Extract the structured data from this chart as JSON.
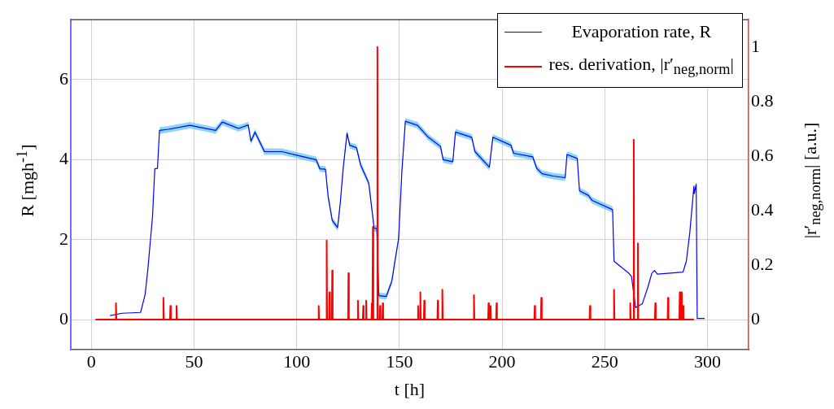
{
  "chart_data": {
    "type": "line",
    "xlabel": "t [h]",
    "ylabel": "R [mgh$^{-1}$]",
    "y2label": "|r′$_{neg,norm}$| [a.u.]",
    "xlim": [
      -10,
      320
    ],
    "xticks": [
      0,
      50,
      100,
      150,
      200,
      250,
      300
    ],
    "ylim": [
      -0.75,
      7.5
    ],
    "yticks": [
      0,
      2,
      4,
      6
    ],
    "y2lim": [
      -0.11,
      1.1
    ],
    "y2ticks": [
      0,
      0.2,
      0.4,
      0.6,
      0.8,
      1
    ],
    "grid": true,
    "legend": "top right",
    "series": [
      {
        "name": "Evaporation rate, R",
        "color": "#0000ff",
        "axis": "y",
        "x": [
          9.1,
          15,
          24,
          26.2,
          27.6,
          28.9,
          29.8,
          30.9,
          32.2,
          33.2,
          37.5,
          48,
          60.5,
          63.8,
          71.7,
          76.4,
          77.7,
          79.7,
          84.3,
          92.9,
          100.8,
          109.4,
          111.3,
          114,
          115.3,
          117.3,
          119.9,
          121.2,
          122.6,
          124.5,
          125.8,
          129.1,
          131.1,
          135.1,
          137.7,
          139,
          140,
          143.6,
          146.3,
          147.6,
          149.6,
          151.2,
          152.9,
          158.8,
          164.1,
          170,
          171.3,
          176,
          177.3,
          185.2,
          186.8,
          193.8,
          195.5,
          204.3,
          205.6,
          214.9,
          216.9,
          219.5,
          224.8,
          230.7,
          231.6,
          236.6,
          237.7,
          241.9,
          243.9,
          253.8,
          254.5,
          261.7,
          263,
          265,
          268.3,
          270.9,
          272.9,
          274.2,
          275.6,
          288.1,
          289.7,
          291.4,
          293.4,
          293.6,
          294.5,
          295,
          298.6
        ],
        "values": [
          0.1,
          0.16,
          0.18,
          0.63,
          1.3,
          2.06,
          2.58,
          3.77,
          3.78,
          4.73,
          4.76,
          4.86,
          4.73,
          4.94,
          4.78,
          4.87,
          4.46,
          4.69,
          4.2,
          4.2,
          4.1,
          4.0,
          3.77,
          3.76,
          3.08,
          2.48,
          2.3,
          2.91,
          3.77,
          4.66,
          4.36,
          4.3,
          3.87,
          3.41,
          2.28,
          2.28,
          0.6,
          0.58,
          0.96,
          1.39,
          2.02,
          3.7,
          4.96,
          4.86,
          4.56,
          4.33,
          4.0,
          3.95,
          4.69,
          4.56,
          4.2,
          3.81,
          4.56,
          4.36,
          4.16,
          4.07,
          3.78,
          3.65,
          3.59,
          3.55,
          4.13,
          4.03,
          3.22,
          3.11,
          2.98,
          2.75,
          1.46,
          1.16,
          1.08,
          0.3,
          0.4,
          0.8,
          1.16,
          1.23,
          1.14,
          1.19,
          1.46,
          2.18,
          3.34,
          3.15,
          3.39,
          0.03,
          0.03
        ],
        "upper": [
          null,
          null,
          null,
          null,
          null,
          null,
          null,
          null,
          null,
          4.81,
          4.84,
          4.94,
          4.81,
          5.02,
          4.86,
          4.95,
          4.54,
          4.77,
          4.28,
          4.28,
          4.18,
          4.08,
          3.85,
          3.84,
          3.16,
          2.56,
          2.38,
          2.99,
          3.85,
          4.74,
          4.44,
          4.38,
          3.95,
          3.49,
          2.36,
          2.36,
          0.68,
          0.66,
          1.04,
          1.47,
          2.1,
          3.78,
          5.04,
          4.94,
          4.64,
          4.41,
          4.08,
          4.03,
          4.77,
          4.64,
          4.28,
          3.89,
          4.64,
          4.44,
          4.24,
          4.15,
          3.86,
          3.73,
          3.67,
          3.63,
          4.21,
          4.11,
          3.3,
          3.19,
          3.06,
          2.83,
          null,
          null,
          null,
          null,
          null,
          null,
          null,
          null,
          null,
          null,
          null,
          null,
          null,
          null,
          null,
          null,
          null
        ],
        "lower": [
          null,
          null,
          null,
          null,
          null,
          null,
          null,
          null,
          null,
          4.65,
          4.68,
          4.78,
          4.65,
          4.86,
          4.7,
          4.79,
          4.38,
          4.61,
          4.12,
          4.12,
          4.02,
          3.92,
          3.69,
          3.68,
          3.0,
          2.4,
          2.22,
          2.83,
          3.69,
          4.58,
          4.28,
          4.22,
          3.79,
          3.33,
          2.2,
          2.2,
          0.52,
          0.5,
          0.88,
          1.31,
          1.94,
          3.62,
          4.88,
          4.78,
          4.48,
          4.25,
          3.92,
          3.87,
          4.61,
          4.48,
          4.12,
          3.73,
          4.48,
          4.28,
          4.08,
          3.99,
          3.7,
          3.57,
          3.51,
          3.47,
          4.05,
          3.95,
          3.14,
          3.03,
          2.9,
          2.67,
          null,
          null,
          null,
          null,
          null,
          null,
          null,
          null,
          null,
          null,
          null,
          null,
          null,
          null,
          null,
          null,
          null
        ]
      },
      {
        "name": "res. derivation, |r′$_{neg,norm}$|",
        "color": "#ff0000",
        "axis": "y2",
        "x": [
          2,
          11.8,
          12,
          12.2,
          34.9,
          35.1,
          35.3,
          38.3,
          38.5,
          38.7,
          41.3,
          41.5,
          41.7,
          110.5,
          110.7,
          110.9,
          114.4,
          114.6,
          114.8,
          115.8,
          116,
          116.2,
          117.1,
          117.3,
          117.5,
          125,
          125.2,
          125.4,
          129.6,
          129.8,
          130,
          132.2,
          132.4,
          132.6,
          133.6,
          133.8,
          134,
          136.4,
          136.6,
          136.8,
          136.9,
          137.1,
          137.3,
          139.1,
          139.3,
          139.5,
          140.4,
          140.6,
          140.8,
          141.7,
          141.9,
          142.1,
          158.9,
          159.1,
          159.3,
          160,
          160.2,
          160.4,
          161.9,
          162.1,
          162.3,
          168.5,
          168.7,
          168.9,
          170.7,
          170.9,
          171.1,
          186.1,
          186.3,
          186.5,
          193.2,
          193.4,
          193.6,
          194.2,
          194.4,
          194.6,
          197.1,
          197.3,
          197.5,
          215.7,
          215.9,
          216.1,
          218.9,
          219.1,
          219.3,
          242.6,
          242.8,
          243,
          254.3,
          254.5,
          254.7,
          262.2,
          262.4,
          262.6,
          263.9,
          264.1,
          264.3,
          265.9,
          266.1,
          266.3,
          274.4,
          274.6,
          274.8,
          280.6,
          280.8,
          281,
          286.3,
          286.5,
          286.7,
          287.1,
          287.3,
          287.5,
          287.9,
          288.1,
          288.3,
          293.4
        ],
        "values": [
          0,
          0,
          0.06,
          0,
          0,
          0.08,
          0,
          0,
          0.05,
          0,
          0,
          0.05,
          0,
          0,
          0.05,
          0,
          0,
          0.29,
          0,
          0,
          0.1,
          0,
          0,
          0.18,
          0,
          0,
          0.17,
          0,
          0,
          0.07,
          0,
          0,
          0.05,
          0,
          0,
          0.07,
          0,
          0,
          0.06,
          0,
          0,
          0.34,
          0,
          0,
          1,
          0,
          0,
          0.05,
          0,
          0,
          0.06,
          0,
          0,
          0.05,
          0,
          0,
          0.1,
          0,
          0,
          0.07,
          0,
          0,
          0.07,
          0,
          0,
          0.11,
          0,
          0,
          0.09,
          0,
          0,
          0.06,
          0,
          0,
          0.05,
          0,
          0,
          0.06,
          0,
          0,
          0.05,
          0,
          0,
          0.08,
          0,
          0,
          0.05,
          0,
          0,
          0.11,
          0,
          0,
          0.06,
          0,
          0,
          0.66,
          0,
          0,
          0.28,
          0,
          0,
          0.06,
          0,
          0,
          0.08,
          0,
          0,
          0.1,
          0,
          0,
          0.1,
          0,
          0,
          0.05,
          0,
          0
        ]
      }
    ]
  }
}
